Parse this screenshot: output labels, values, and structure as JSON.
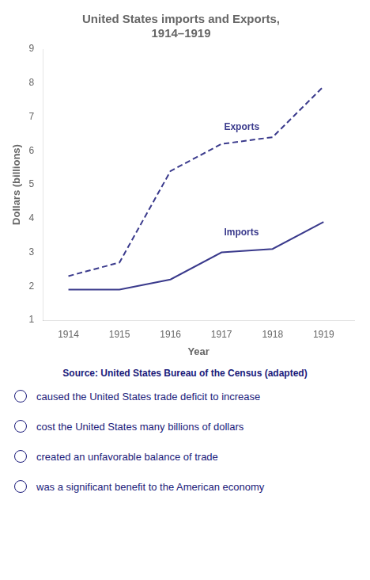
{
  "chart_data": {
    "type": "line",
    "title": [
      "United States imports and Exports,",
      "1914–1919"
    ],
    "x_label": "Year",
    "y_label": "Dollars (billions)",
    "x": [
      1914,
      1915,
      1916,
      1917,
      1918,
      1919
    ],
    "series": [
      {
        "name": "Exports",
        "color": "#3a3a8c",
        "line_style": "dashed",
        "values": [
          2.3,
          2.7,
          5.4,
          6.2,
          6.4,
          7.9
        ]
      },
      {
        "name": "Imports",
        "color": "#3a3a8c",
        "line_style": "solid",
        "values": [
          1.9,
          1.9,
          2.2,
          3.0,
          3.1,
          3.9
        ]
      }
    ],
    "xlim": [
      1913.5,
      1919.6
    ],
    "xticks": [
      1914,
      1915,
      1916,
      1917,
      1918,
      1919
    ],
    "ylim": [
      1,
      9
    ],
    "yticks": [
      1,
      2,
      3,
      4,
      5,
      6,
      7,
      8,
      9
    ],
    "grid": false,
    "annotations": [
      {
        "text": "Exports",
        "x": 1917.05,
        "y": 6.55,
        "color": "#3a3a8c"
      },
      {
        "text": "Imports",
        "x": 1917.05,
        "y": 3.45,
        "color": "#3a3a8c"
      }
    ],
    "source": "Source: United States Bureau of the Census (adapted)",
    "answer_choices": [
      "caused the United States trade deficit to increase",
      "cost the United States many billions of dollars",
      "created an unfavorable balance of trade",
      "was a significant benefit to the American economy"
    ]
  }
}
